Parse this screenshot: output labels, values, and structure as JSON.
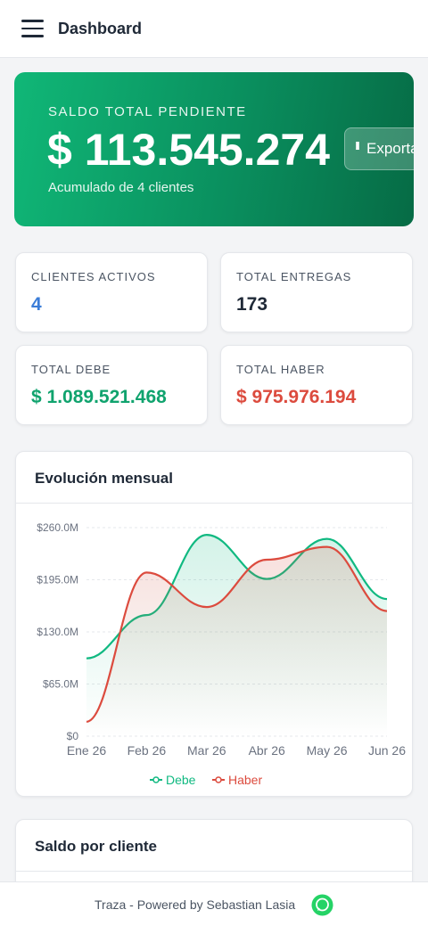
{
  "header": {
    "title": "Dashboard"
  },
  "balance": {
    "label": "SALDO TOTAL PENDIENTE",
    "amount": "$ 113.545.274",
    "note": "Acumulado de 4 clientes",
    "button": "Exportar"
  },
  "stats": [
    {
      "label": "CLIENTES ACTIVOS",
      "value": "4"
    },
    {
      "label": "TOTAL ENTREGAS",
      "value": "173"
    },
    {
      "label": "TOTAL DEBE",
      "value": "$ 1.089.521.468"
    },
    {
      "label": "TOTAL HABER",
      "value": "$ 975.976.194"
    }
  ],
  "chart_card": {
    "title": "Evolución mensual"
  },
  "chart_data": {
    "type": "line",
    "categories": [
      "Ene 26",
      "Feb 26",
      "Mar 26",
      "Abr 26",
      "May 26",
      "Jun 26"
    ],
    "series": [
      {
        "name": "Debe",
        "color": "#10b981",
        "values": [
          97000000,
          151000000,
          251000000,
          196000000,
          246000000,
          171000000
        ]
      },
      {
        "name": "Haber",
        "color": "#dc4b3e",
        "values": [
          18000000,
          204000000,
          161000000,
          220000000,
          236000000,
          156000000
        ]
      }
    ],
    "ylim": [
      0,
      260000000
    ],
    "yticks": [
      {
        "value": 0,
        "label": "$0"
      },
      {
        "value": 65000000,
        "label": "$65.0M"
      },
      {
        "value": 130000000,
        "label": "$130.0M"
      },
      {
        "value": 195000000,
        "label": "$195.0M"
      },
      {
        "value": 260000000,
        "label": "$260.0M"
      }
    ],
    "grid": true,
    "legend": "bottom"
  },
  "clients_card": {
    "title": "Saldo por cliente"
  },
  "footer": {
    "text": "Traza - Powered by Sebastian Lasia"
  }
}
